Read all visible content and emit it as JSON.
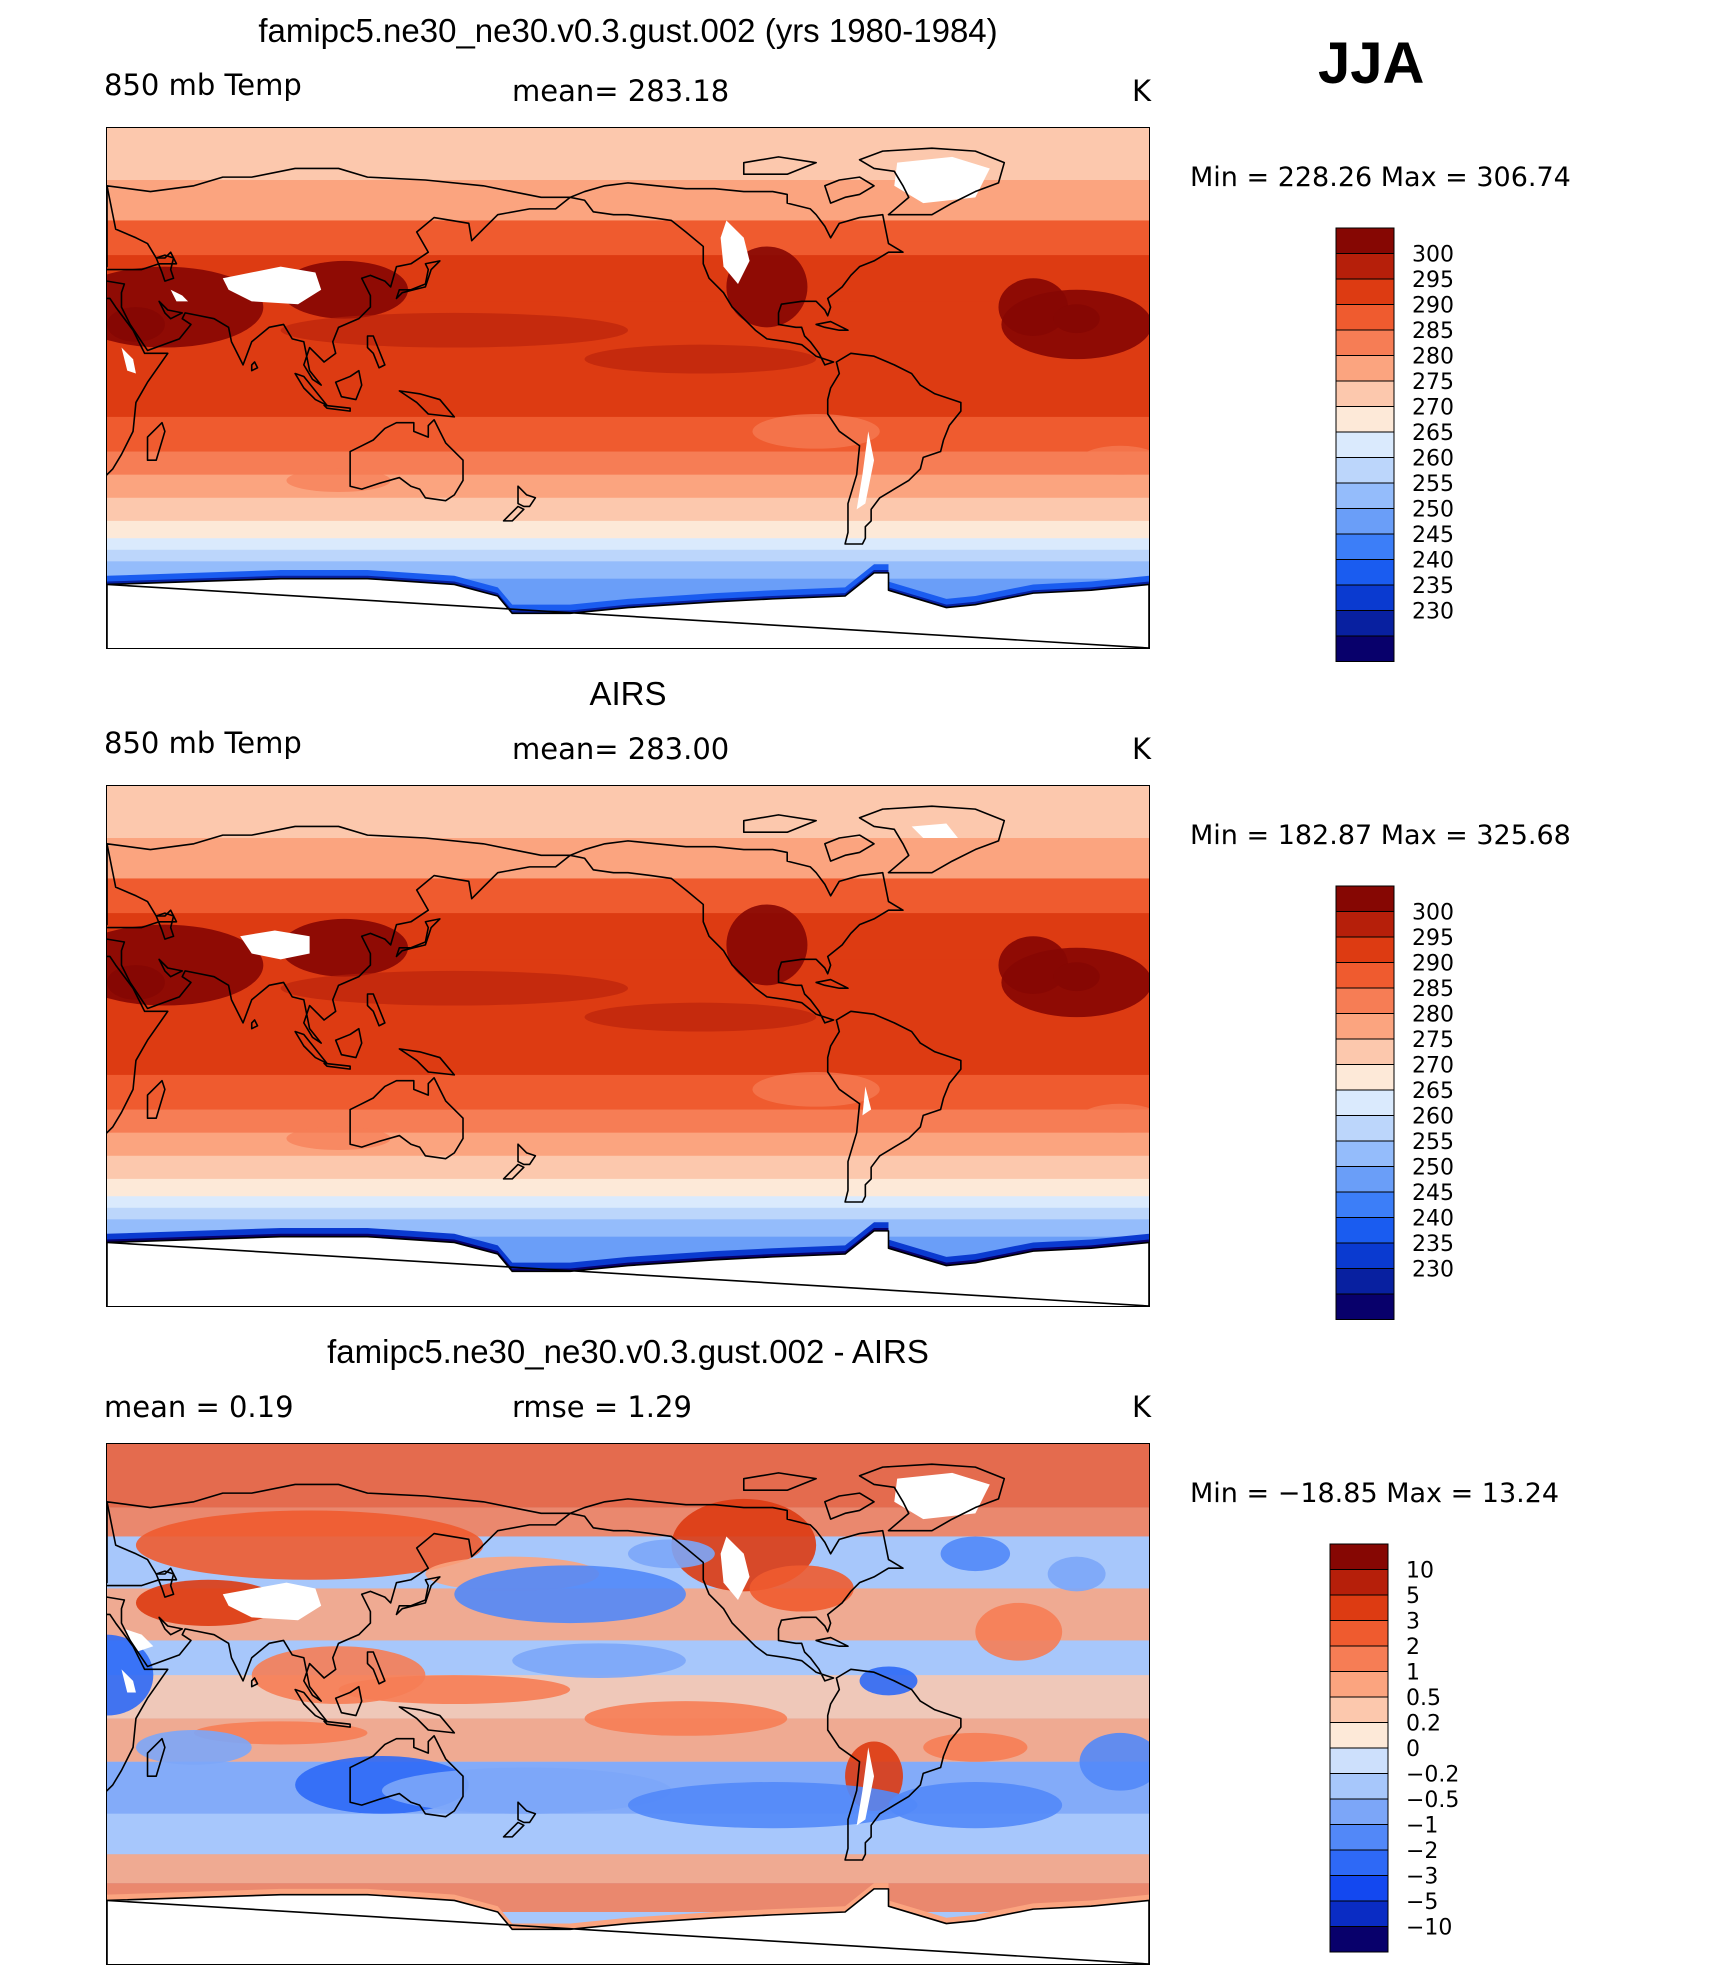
{
  "season": "JJA",
  "colors": {
    "temp": [
      "#08006b",
      "#0820a0",
      "#0a3ad0",
      "#1a5cf0",
      "#3c7ef8",
      "#6a9ef8",
      "#94bcfb",
      "#bcd6fb",
      "#daeafd",
      "#fde9d8",
      "#fcc8ad",
      "#fba47f",
      "#f67d55",
      "#ef5b2f",
      "#dd3b12",
      "#b61f0a",
      "#860703"
    ],
    "diff": [
      "#08006b",
      "#0a2cc4",
      "#1348f0",
      "#2e69f6",
      "#5288f8",
      "#7ca6f8",
      "#a7c7fb",
      "#cde0fc",
      "#fde9d8",
      "#fcc8ad",
      "#fba47f",
      "#f67d55",
      "#ef5b2f",
      "#dd3b12",
      "#b61f0a",
      "#860703"
    ]
  },
  "panels": [
    {
      "title": "famipc5.ne30_ne30.v0.3.gust.002 (yrs 1980-1984)",
      "left_label": "850 mb Temp",
      "center_label": "mean=  283.18",
      "units": "K",
      "minmax": "Min  =  228.26  Max  =  306.74"
    },
    {
      "title": "AIRS",
      "left_label": "850 mb Temp",
      "center_label": "mean=  283.00",
      "units": "K",
      "minmax": "Min  =  182.87  Max  =  325.68"
    },
    {
      "title": "famipc5.ne30_ne30.v0.3.gust.002 - AIRS",
      "left_label": "mean  =      0.19",
      "center_label": "rmse  =      1.29",
      "units": "K",
      "minmax": "Min  =  −18.85  Max  =     13.24"
    }
  ],
  "chart_data": [
    {
      "type": "heatmap",
      "map": "global lat-lon",
      "title": "famipc5.ne30_ne30.v0.3.gust.002 (yrs 1980-1984)",
      "variable": "850 mb Temp",
      "units": "K",
      "mean": 283.18,
      "min": 228.26,
      "max": 306.74,
      "colorbar_levels": [
        300,
        295,
        290,
        285,
        280,
        275,
        270,
        265,
        260,
        255,
        250,
        245,
        240,
        235,
        230
      ]
    },
    {
      "type": "heatmap",
      "map": "global lat-lon",
      "title": "AIRS",
      "variable": "850 mb Temp",
      "units": "K",
      "mean": 283.0,
      "min": 182.87,
      "max": 325.68,
      "colorbar_levels": [
        300,
        295,
        290,
        285,
        280,
        275,
        270,
        265,
        260,
        255,
        250,
        245,
        240,
        235,
        230
      ]
    },
    {
      "type": "heatmap",
      "map": "global lat-lon",
      "title": "famipc5.ne30_ne30.v0.3.gust.002 - AIRS",
      "units": "K",
      "mean": 0.19,
      "rmse": 1.29,
      "min": -18.85,
      "max": 13.24,
      "colorbar_levels": [
        "10",
        "5",
        "3",
        "2",
        "1",
        "0.5",
        "0.2",
        "0",
        "−0.2",
        "−0.5",
        "−1",
        "−2",
        "−3",
        "−5",
        "−10"
      ]
    }
  ]
}
